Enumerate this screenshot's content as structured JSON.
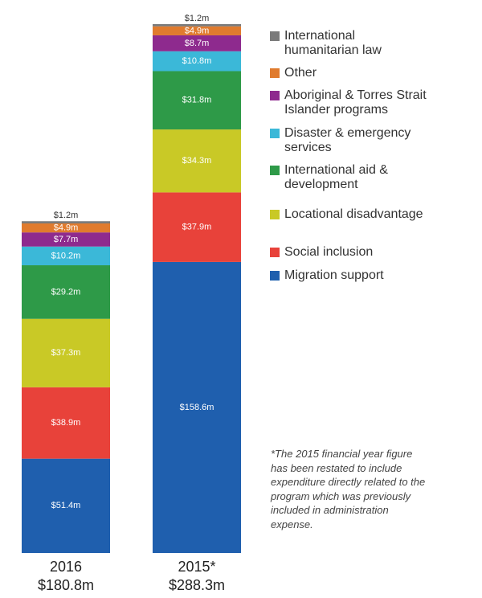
{
  "chart_data": {
    "type": "stacked-bar",
    "categories": [
      "2016",
      "2015*"
    ],
    "totals": [
      {
        "value": 180.8,
        "label": "$180.8m"
      },
      {
        "value": 288.3,
        "label": "$288.3m"
      }
    ],
    "series": [
      {
        "name": "Migration support",
        "color": "#1f5fae",
        "values": [
          51.4,
          158.6
        ],
        "value_labels": [
          "$51.4m",
          "$158.6m"
        ]
      },
      {
        "name": "Social inclusion",
        "color": "#e8423a",
        "values": [
          38.9,
          37.9
        ],
        "value_labels": [
          "$38.9m",
          "$37.9m"
        ]
      },
      {
        "name": "Locational disadvantage",
        "color": "#c9c926",
        "values": [
          37.3,
          34.3
        ],
        "value_labels": [
          "$37.3m",
          "$34.3m"
        ]
      },
      {
        "name": "International aid & development",
        "color": "#2e9a48",
        "values": [
          29.2,
          31.8
        ],
        "value_labels": [
          "$29.2m",
          "$31.8m"
        ]
      },
      {
        "name": "Disaster & emergency services",
        "color": "#3bb8d8",
        "values": [
          10.2,
          10.8
        ],
        "value_labels": [
          "$10.2m",
          "$10.8m"
        ]
      },
      {
        "name": "Aboriginal & Torres Strait Islander programs",
        "color": "#8e2a8e",
        "values": [
          7.7,
          8.7
        ],
        "value_labels": [
          "$7.7m",
          "$8.7m"
        ]
      },
      {
        "name": "Other",
        "color": "#e07b2e",
        "values": [
          4.9,
          4.9
        ],
        "value_labels": [
          "$4.9m",
          "$4.9m"
        ]
      },
      {
        "name": "International humanitarian law",
        "color": "#7a7a7a",
        "values": [
          1.2,
          1.2
        ],
        "value_labels": [
          "$1.2m",
          "$1.2m"
        ]
      }
    ],
    "legend": "right",
    "note": "*The 2015 financial year figure has been restated to include expenditure directly related to the program which was previously included in administration expense."
  }
}
